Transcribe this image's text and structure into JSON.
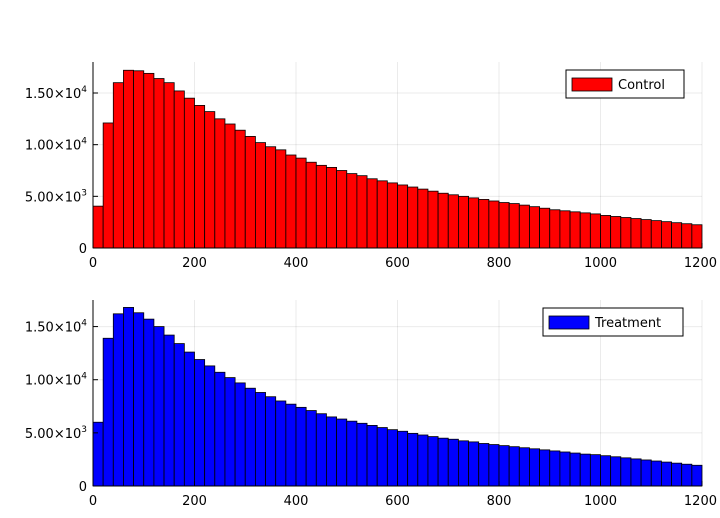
{
  "chart_data": [
    {
      "type": "bar",
      "title": "",
      "xlabel": "",
      "ylabel": "",
      "xlim": [
        0,
        1200
      ],
      "ylim": [
        0,
        18000
      ],
      "bin_width": 20,
      "grid": true,
      "legend_position": "top-right",
      "x_ticks": [
        {
          "value": 0,
          "label": "0"
        },
        {
          "value": 200,
          "label": "200"
        },
        {
          "value": 400,
          "label": "400"
        },
        {
          "value": 600,
          "label": "600"
        },
        {
          "value": 800,
          "label": "800"
        },
        {
          "value": 1000,
          "label": "1000"
        },
        {
          "value": 1200,
          "label": "1200"
        }
      ],
      "y_ticks": [
        {
          "value": 0,
          "mantissa": "0",
          "exp": ""
        },
        {
          "value": 5000,
          "mantissa": "5.00×10",
          "exp": "3"
        },
        {
          "value": 10000,
          "mantissa": "1.00×10",
          "exp": "4"
        },
        {
          "value": 15000,
          "mantissa": "1.50×10",
          "exp": "4"
        }
      ],
      "series": [
        {
          "name": "Control",
          "color": "#ff0000",
          "values": [
            4050,
            12100,
            16000,
            17200,
            17150,
            16900,
            16400,
            16000,
            15200,
            14500,
            13800,
            13200,
            12500,
            12000,
            11400,
            10800,
            10200,
            9800,
            9500,
            9000,
            8700,
            8300,
            8000,
            7800,
            7500,
            7200,
            7000,
            6700,
            6500,
            6300,
            6100,
            5900,
            5700,
            5500,
            5300,
            5150,
            5000,
            4850,
            4700,
            4550,
            4400,
            4300,
            4150,
            4000,
            3850,
            3700,
            3600,
            3500,
            3400,
            3300,
            3150,
            3050,
            2950,
            2850,
            2750,
            2650,
            2550,
            2450,
            2350,
            2250
          ]
        }
      ]
    },
    {
      "type": "bar",
      "title": "",
      "xlabel": "",
      "ylabel": "",
      "xlim": [
        0,
        1200
      ],
      "ylim": [
        0,
        17500
      ],
      "bin_width": 20,
      "grid": true,
      "legend_position": "top-right",
      "x_ticks": [
        {
          "value": 0,
          "label": "0"
        },
        {
          "value": 200,
          "label": "200"
        },
        {
          "value": 400,
          "label": "400"
        },
        {
          "value": 600,
          "label": "600"
        },
        {
          "value": 800,
          "label": "800"
        },
        {
          "value": 1000,
          "label": "1000"
        },
        {
          "value": 1200,
          "label": "1200"
        }
      ],
      "y_ticks": [
        {
          "value": 0,
          "mantissa": "0",
          "exp": ""
        },
        {
          "value": 5000,
          "mantissa": "5.00×10",
          "exp": "3"
        },
        {
          "value": 10000,
          "mantissa": "1.00×10",
          "exp": "4"
        },
        {
          "value": 15000,
          "mantissa": "1.50×10",
          "exp": "4"
        }
      ],
      "series": [
        {
          "name": "Treatment",
          "color": "#0000ff",
          "values": [
            6000,
            13900,
            16200,
            16800,
            16300,
            15700,
            15000,
            14200,
            13400,
            12600,
            11900,
            11300,
            10700,
            10200,
            9700,
            9200,
            8800,
            8400,
            8000,
            7700,
            7400,
            7100,
            6800,
            6500,
            6300,
            6100,
            5900,
            5700,
            5500,
            5300,
            5150,
            4950,
            4800,
            4650,
            4500,
            4400,
            4250,
            4150,
            4000,
            3900,
            3800,
            3700,
            3600,
            3500,
            3400,
            3300,
            3200,
            3100,
            3000,
            2950,
            2850,
            2750,
            2650,
            2550,
            2450,
            2350,
            2250,
            2150,
            2050,
            1950
          ]
        }
      ]
    }
  ]
}
